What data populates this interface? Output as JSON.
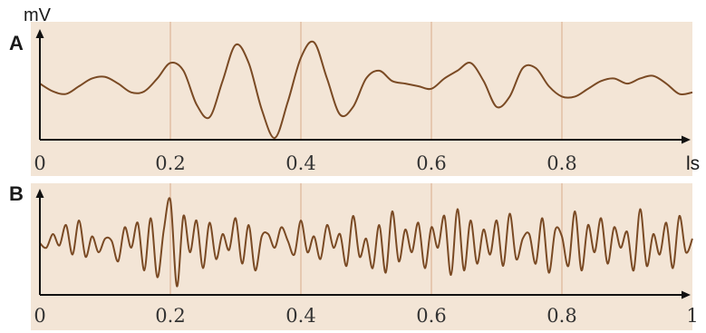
{
  "colors": {
    "panel_background": "#f3e5d6",
    "grid_lines": "#e6c8b0",
    "axis": "#111111",
    "trace": "#7a4a24"
  },
  "chart_data": [
    {
      "type": "line",
      "panel_label": "A",
      "ylabel": "mV",
      "xlabel": "",
      "x_axis_unit_label": "ls",
      "xlim": [
        0,
        1
      ],
      "ylim": [
        -1,
        1
      ],
      "x_ticks": [
        0,
        0.2,
        0.4,
        0.6,
        0.8
      ],
      "x_tick_labels": [
        "0",
        "0.2",
        "0.4",
        "0.6",
        "0.8"
      ],
      "grid": "vertical",
      "series": [
        {
          "x": [
            0,
            0.02,
            0.04,
            0.06,
            0.08,
            0.1,
            0.12,
            0.14,
            0.16,
            0.18,
            0.2,
            0.22,
            0.24,
            0.26,
            0.28,
            0.3,
            0.32,
            0.34,
            0.36,
            0.38,
            0.4,
            0.42,
            0.44,
            0.46,
            0.48,
            0.5,
            0.52,
            0.54,
            0.56,
            0.58,
            0.6,
            0.62,
            0.64,
            0.66,
            0.68,
            0.7,
            0.72,
            0.74,
            0.76,
            0.78,
            0.8,
            0.82,
            0.84,
            0.86,
            0.88,
            0.9,
            0.92,
            0.94,
            0.96,
            0.98,
            1.0
          ],
          "y": [
            0.05,
            -0.1,
            -0.15,
            0.0,
            0.15,
            0.18,
            0.05,
            -0.12,
            -0.1,
            0.15,
            0.45,
            0.3,
            -0.35,
            -0.6,
            0.1,
            0.8,
            0.45,
            -0.45,
            -1.0,
            -0.3,
            0.55,
            0.85,
            0.15,
            -0.55,
            -0.4,
            0.15,
            0.3,
            0.1,
            0.05,
            0.0,
            -0.05,
            0.15,
            0.3,
            0.45,
            0.1,
            -0.4,
            -0.2,
            0.35,
            0.35,
            0.0,
            -0.2,
            -0.2,
            -0.05,
            0.1,
            0.15,
            0.05,
            0.15,
            0.2,
            0.05,
            -0.15,
            -0.12
          ]
        }
      ]
    },
    {
      "type": "line",
      "panel_label": "B",
      "ylabel": "",
      "xlabel": "",
      "xlim": [
        0,
        1
      ],
      "ylim": [
        -1,
        1
      ],
      "x_ticks": [
        0,
        0.2,
        0.4,
        0.6,
        0.8,
        1
      ],
      "x_tick_labels": [
        "0",
        "0.2",
        "0.4",
        "0.6",
        "0.8",
        "1"
      ],
      "grid": "vertical",
      "series": [
        {
          "x": [
            0,
            0.01,
            0.02,
            0.03,
            0.04,
            0.05,
            0.06,
            0.07,
            0.08,
            0.09,
            0.1,
            0.11,
            0.12,
            0.13,
            0.14,
            0.15,
            0.16,
            0.17,
            0.18,
            0.19,
            0.2,
            0.21,
            0.22,
            0.23,
            0.24,
            0.25,
            0.26,
            0.27,
            0.28,
            0.29,
            0.3,
            0.31,
            0.32,
            0.33,
            0.34,
            0.35,
            0.36,
            0.37,
            0.38,
            0.39,
            0.4,
            0.41,
            0.42,
            0.43,
            0.44,
            0.45,
            0.46,
            0.47,
            0.48,
            0.49,
            0.5,
            0.51,
            0.52,
            0.53,
            0.54,
            0.55,
            0.56,
            0.57,
            0.58,
            0.59,
            0.6,
            0.61,
            0.62,
            0.63,
            0.64,
            0.65,
            0.66,
            0.67,
            0.68,
            0.69,
            0.7,
            0.71,
            0.72,
            0.73,
            0.74,
            0.75,
            0.76,
            0.77,
            0.78,
            0.79,
            0.8,
            0.81,
            0.82,
            0.83,
            0.84,
            0.85,
            0.86,
            0.87,
            0.88,
            0.89,
            0.9,
            0.91,
            0.92,
            0.93,
            0.94,
            0.95,
            0.96,
            0.97,
            0.98,
            0.99,
            1.0
          ],
          "y": [
            0.0,
            -0.1,
            0.2,
            -0.05,
            0.4,
            -0.25,
            0.5,
            -0.3,
            0.15,
            -0.2,
            0.1,
            0.05,
            -0.4,
            0.35,
            -0.1,
            0.45,
            -0.6,
            0.55,
            -0.75,
            0.3,
            0.95,
            -0.95,
            0.6,
            -0.2,
            0.5,
            -0.55,
            0.45,
            -0.35,
            0.2,
            -0.15,
            0.55,
            -0.45,
            0.4,
            -0.6,
            0.15,
            0.2,
            -0.1,
            0.35,
            0.05,
            -0.25,
            0.5,
            -0.2,
            0.15,
            -0.35,
            0.4,
            -0.1,
            0.2,
            -0.5,
            0.6,
            -0.3,
            0.1,
            -0.55,
            0.4,
            -0.65,
            0.7,
            -0.4,
            0.3,
            -0.2,
            0.45,
            -0.55,
            0.35,
            -0.1,
            0.6,
            -0.7,
            0.75,
            -0.6,
            0.5,
            -0.45,
            0.3,
            -0.25,
            0.5,
            -0.5,
            0.65,
            -0.35,
            0.1,
            0.2,
            -0.45,
            0.55,
            -0.65,
            0.3,
            0.15,
            -0.5,
            0.7,
            -0.6,
            0.4,
            -0.2,
            0.55,
            -0.45,
            0.35,
            -0.1,
            0.25,
            -0.6,
            0.75,
            -0.5,
            0.2,
            -0.25,
            0.45,
            -0.55,
            0.6,
            -0.2,
            0.1
          ]
        }
      ]
    }
  ]
}
